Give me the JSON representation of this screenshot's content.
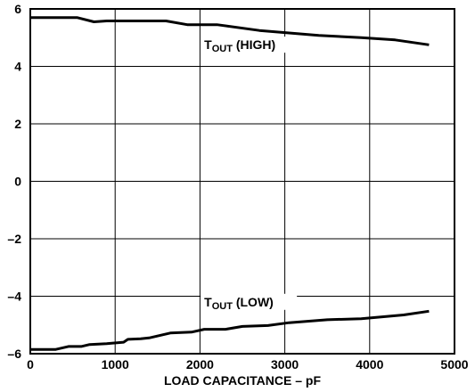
{
  "chart_data": {
    "type": "line",
    "title": "",
    "xlabel": "LOAD CAPACITANCE – pF",
    "ylabel": "",
    "xlim": [
      0,
      5000
    ],
    "ylim": [
      -6,
      6
    ],
    "xticks": [
      0,
      1000,
      2000,
      3000,
      4000,
      5000
    ],
    "yticks": [
      6,
      4,
      2,
      0,
      -2,
      -4,
      -6
    ],
    "ytick_labels": [
      "6",
      "4",
      "2",
      "0",
      "–2",
      "–4",
      "–6"
    ],
    "grid": true,
    "series": [
      {
        "name": "TOUT (HIGH)",
        "label_main": "T",
        "label_sub": "OUT",
        "label_rest": " (HIGH)",
        "x": [
          0,
          100,
          550,
          750,
          900,
          1600,
          1850,
          2200,
          2700,
          3400,
          3900,
          4300,
          4700
        ],
        "y": [
          5.7,
          5.7,
          5.7,
          5.55,
          5.58,
          5.58,
          5.45,
          5.45,
          5.25,
          5.08,
          5.0,
          4.92,
          4.75
        ]
      },
      {
        "name": "TOUT (LOW)",
        "label_main": "T",
        "label_sub": "OUT",
        "label_rest": " (LOW)",
        "x": [
          0,
          300,
          450,
          600,
          700,
          900,
          1100,
          1150,
          1300,
          1400,
          1650,
          1900,
          2050,
          2300,
          2500,
          2800,
          3050,
          3500,
          3900,
          4400,
          4700
        ],
        "y": [
          -5.85,
          -5.85,
          -5.75,
          -5.75,
          -5.68,
          -5.65,
          -5.6,
          -5.5,
          -5.48,
          -5.45,
          -5.28,
          -5.25,
          -5.15,
          -5.15,
          -5.05,
          -5.02,
          -4.92,
          -4.82,
          -4.78,
          -4.65,
          -4.52
        ]
      }
    ]
  }
}
